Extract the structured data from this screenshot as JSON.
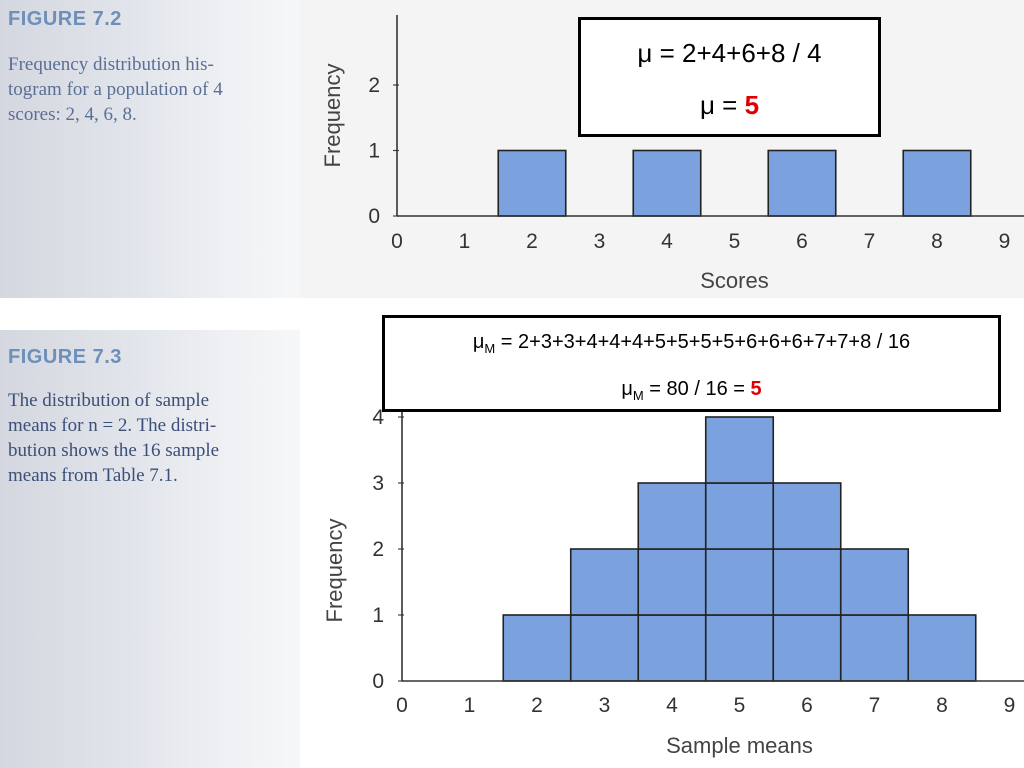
{
  "figure_7_2": {
    "label": "FIGURE 7.2",
    "caption_lines": [
      "Frequency distribution his-",
      "togram for a population of 4",
      "scores: 2, 4, 6, 8."
    ]
  },
  "figure_7_3": {
    "label": "FIGURE 7.3",
    "caption_lines": [
      "The distribution of sample",
      "means for n = 2. The distri-",
      "bution shows the 16 sample",
      "means from Table 7.1."
    ]
  },
  "mu_box": {
    "line1": "μ = 2+4+6+8 / 4",
    "line2_prefix": "μ = ",
    "line2_value": "5"
  },
  "muM_box": {
    "mu": "μ",
    "sub": "M",
    "line1_rest": " = 2+3+3+4+4+4+5+5+5+5+6+6+6+7+7+8 / 16",
    "line2_rest": " = 80 / 16 = ",
    "line2_value": "5"
  },
  "colors": {
    "bar": "#7ba2de",
    "result": "#e00000"
  },
  "chart_data": [
    {
      "type": "bar",
      "x": [
        2,
        4,
        6,
        8
      ],
      "values": [
        1,
        1,
        1,
        1
      ],
      "xlabel": "Scores",
      "ylabel": "Frequency",
      "xticks": [
        0,
        1,
        2,
        3,
        4,
        5,
        6,
        7,
        8,
        9
      ],
      "yticks": [
        0,
        1,
        2
      ],
      "xlim": [
        0,
        9
      ],
      "ylim": [
        0,
        2
      ]
    },
    {
      "type": "bar",
      "x": [
        2,
        3,
        4,
        5,
        6,
        7,
        8
      ],
      "values": [
        1,
        2,
        3,
        4,
        3,
        2,
        1
      ],
      "xlabel": "Sample means",
      "ylabel": "Frequency",
      "xticks": [
        0,
        1,
        2,
        3,
        4,
        5,
        6,
        7,
        8,
        9
      ],
      "yticks": [
        0,
        1,
        2,
        3,
        4
      ],
      "xlim": [
        0,
        9
      ],
      "ylim": [
        0,
        4
      ]
    }
  ]
}
